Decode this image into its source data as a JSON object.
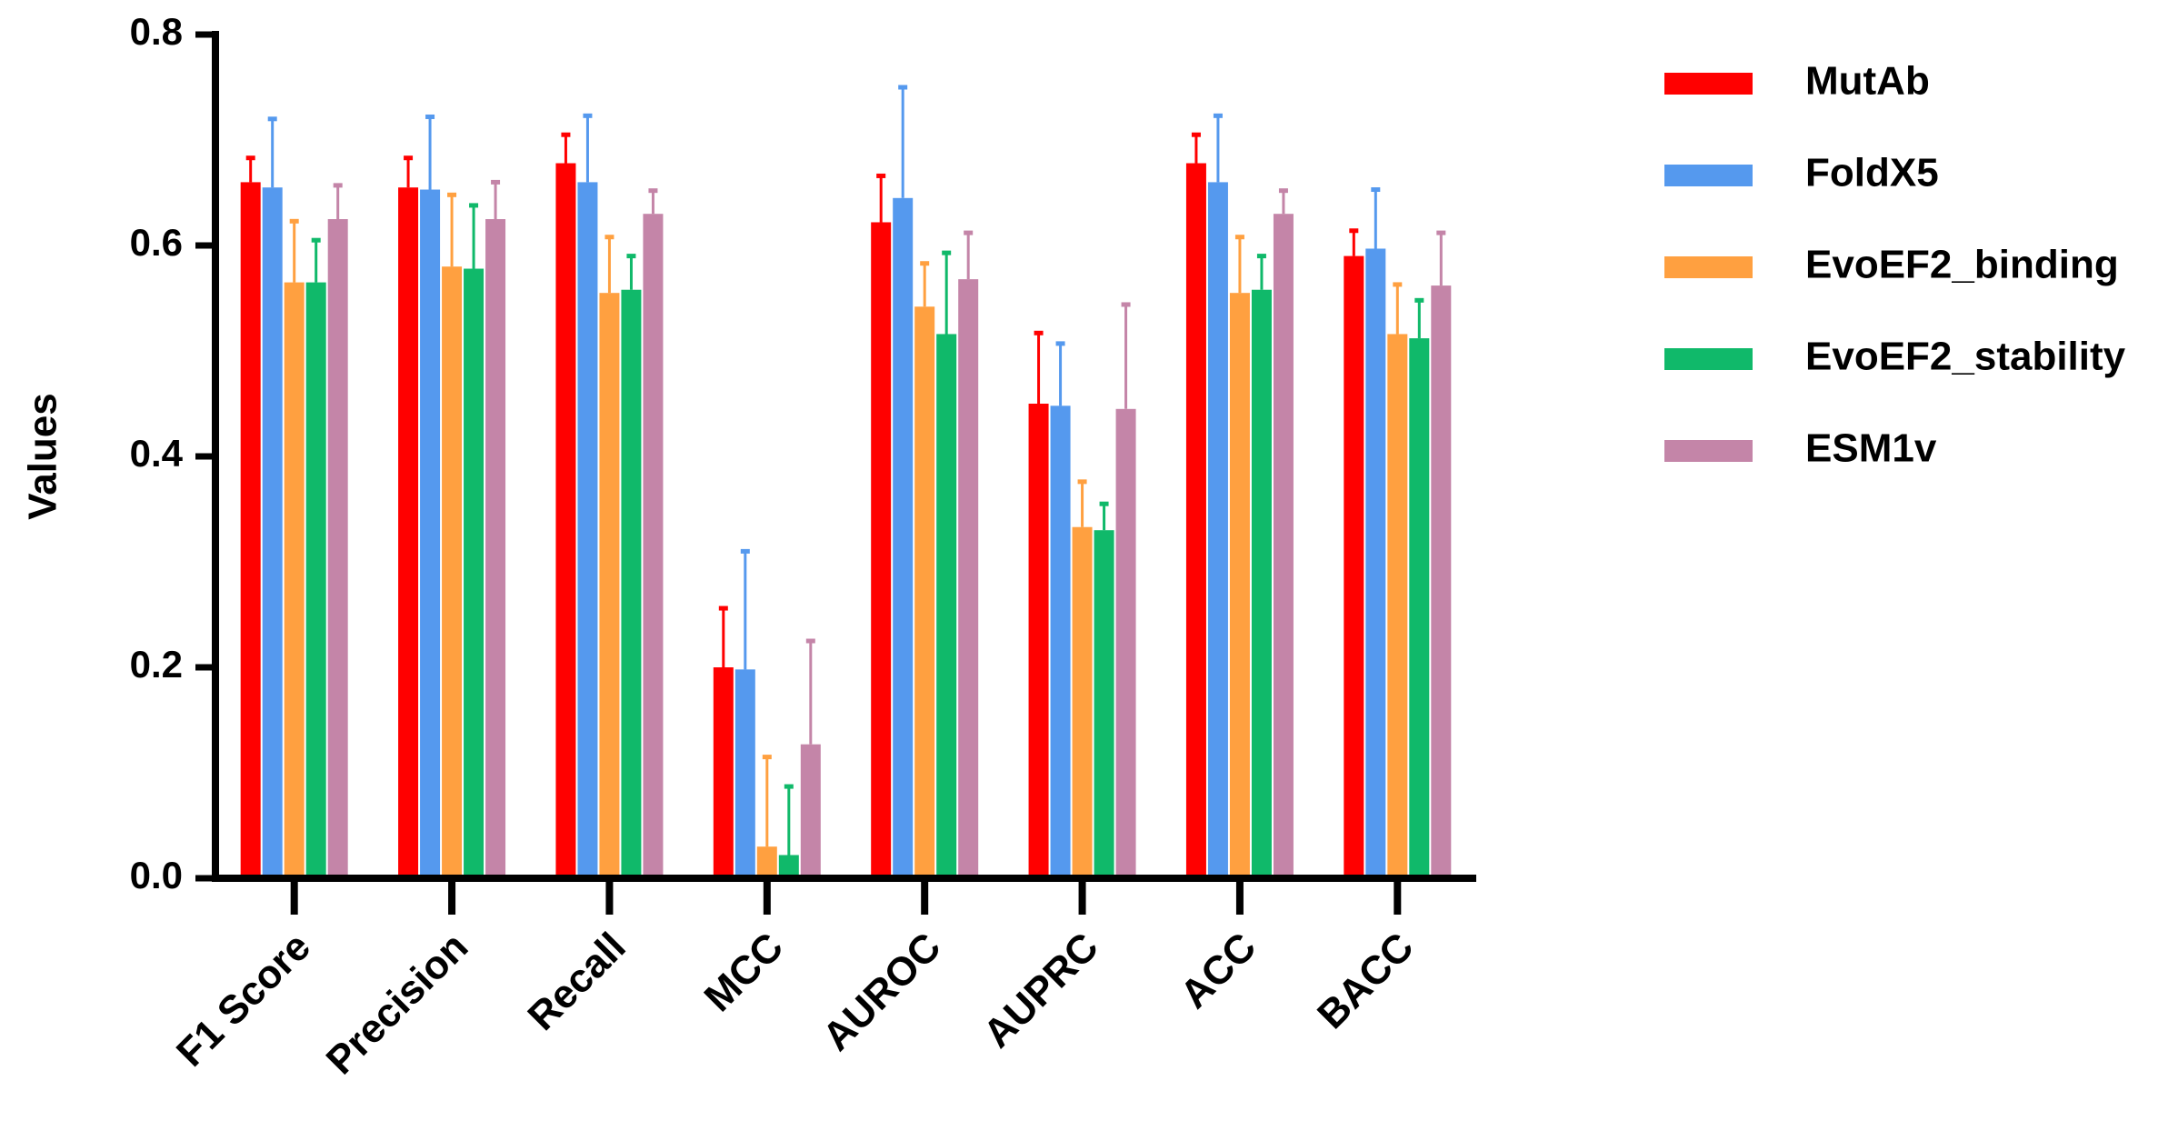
{
  "chart_data": {
    "type": "bar",
    "y_label": "Values",
    "categories": [
      "F1 Score",
      "Precision",
      "Recall",
      "MCC",
      "AUROC",
      "AUPRC",
      "ACC",
      "BACC"
    ],
    "series": [
      {
        "name": "MutAb",
        "color": "#ff0000",
        "values": [
          0.66,
          0.655,
          0.678,
          0.2,
          0.622,
          0.45,
          0.678,
          0.59
        ],
        "errors": [
          0.023,
          0.028,
          0.027,
          0.056,
          0.044,
          0.067,
          0.027,
          0.024
        ]
      },
      {
        "name": "FoldX5",
        "color": "#5599ee",
        "values": [
          0.655,
          0.653,
          0.66,
          0.198,
          0.645,
          0.448,
          0.66,
          0.597
        ],
        "errors": [
          0.065,
          0.069,
          0.063,
          0.112,
          0.105,
          0.059,
          0.063,
          0.056
        ]
      },
      {
        "name": "EvoEF2_binding",
        "color": "#ffa040",
        "values": [
          0.565,
          0.58,
          0.555,
          0.03,
          0.542,
          0.333,
          0.555,
          0.516
        ],
        "errors": [
          0.058,
          0.068,
          0.053,
          0.085,
          0.041,
          0.043,
          0.053,
          0.047
        ]
      },
      {
        "name": "EvoEF2_stability",
        "color": "#10b96a",
        "values": [
          0.565,
          0.578,
          0.558,
          0.022,
          0.516,
          0.33,
          0.558,
          0.512
        ],
        "errors": [
          0.04,
          0.06,
          0.032,
          0.065,
          0.077,
          0.025,
          0.032,
          0.036
        ]
      },
      {
        "name": "ESM1v",
        "color": "#c485a8",
        "values": [
          0.625,
          0.625,
          0.63,
          0.127,
          0.568,
          0.445,
          0.63,
          0.562
        ],
        "errors": [
          0.032,
          0.035,
          0.022,
          0.098,
          0.044,
          0.099,
          0.022,
          0.05
        ]
      }
    ],
    "ylim": [
      0,
      0.8
    ],
    "yticks": [
      {
        "value": 0,
        "label": "0.0"
      },
      0.2,
      0.4,
      0.6,
      0.8
    ],
    "legend": "right"
  }
}
